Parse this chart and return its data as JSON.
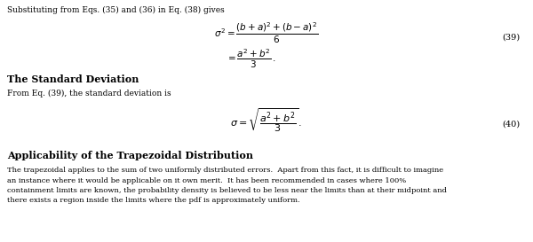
{
  "bg_color": "#ffffff",
  "text_color": "#000000",
  "fig_width": 6.0,
  "fig_height": 2.73,
  "dpi": 100,
  "line1": "Substituting from Eqs. (35) and (36) in Eq. (38) gives",
  "eq39_label": "(39)",
  "eq40_label": "(40)",
  "eq39_line1": "$\\sigma^2 = \\dfrac{(b+a)^2+(b-a)^2}{6}$",
  "eq39_line2": "$= \\dfrac{a^2+b^2}{3}\\,.$",
  "eq40": "$\\sigma = \\sqrt{\\dfrac{a^2+b^2}{3}}\\,.$",
  "section1_title": "The Standard Deviation",
  "section1_intro": "From Eq. (39), the standard deviation is",
  "section2_title": "Applicability of the Trapezoidal Distribution",
  "section2_line1": "The trapezoidal applies to the sum of two uniformly distributed errors.  Apart from this fact, it is difficult to imagine",
  "section2_line2": "an instance where it would be applicable on it own merit.  It has been recommended in cases where 100%",
  "section2_line3": "containment limits are known, the probability density is believed to be less near the limits than at their midpoint and",
  "section2_line4": "there exists a region inside the limits where the pdf is approximately uniform."
}
